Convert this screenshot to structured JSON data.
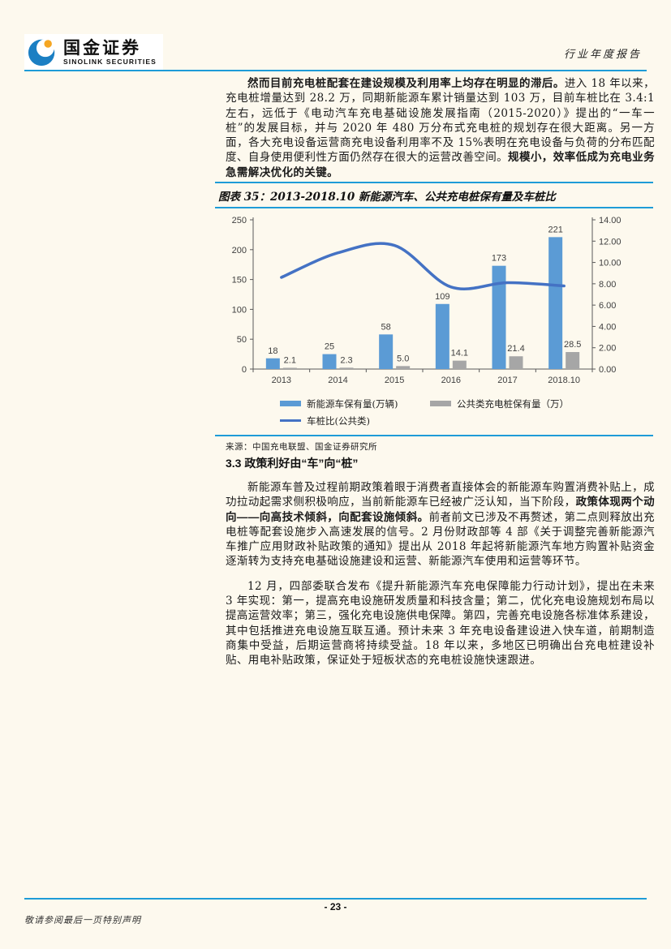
{
  "page": {
    "number": "- 23 -",
    "footer_note": "敬请参阅最后一页特别声明",
    "background": "#FDF9EE",
    "rule_color": "#1E9CD7",
    "text_color": "#1a1a1a"
  },
  "header": {
    "brand_cn": "国金证券",
    "brand_en": "SINOLINK SECURITIES",
    "report_type": "行业年度报告",
    "logo_blue": "#1B7FC3",
    "logo_yellow": "#F5A623"
  },
  "paragraphs_top": [
    {
      "runs": [
        {
          "bold": true,
          "text": "然而目前充电桩配套在建设规模及利用率上均存在明显的滞后。"
        },
        {
          "bold": false,
          "text": "进入 18 年以来，充电桩增量达到 28.2 万，同期新能源车累计销量达到 103 万，目前车桩比在 3.4:1 左右，远低于《电动汽车充电基础设施发展指南（2015-2020）》提出的“一车一桩”的发展目标，并与 2020 年 480 万分布式充电桩的规划存在很大距离。另一方面，各大充电设备运营商充电设备利用率不及 15%表明在充电设备与负荷的分布匹配度、自身使用便利性方面仍然存在很大的运营改善空间。"
        },
        {
          "bold": true,
          "text": "规模小，效率低成为充电业务急需解决优化的关键。"
        }
      ]
    }
  ],
  "figure": {
    "title": "图表 35：2013-2018.10 新能源汽车、公共充电桩保有量及车桩比",
    "source": "来源：中国充电联盟、国金证券研究所"
  },
  "chart_data": {
    "type": "bar",
    "subtype": "bar+line combo, dual axis",
    "title": "图表 35：2013-2018.10 新能源汽车、公共充电桩保有量及车桩比",
    "categories": [
      "2013",
      "2014",
      "2015",
      "2016",
      "2017",
      "2018.10"
    ],
    "series": [
      {
        "name": "新能源车保有量(万辆)",
        "type": "bar",
        "axis": "left",
        "color": "#5B9BD5",
        "values": [
          18,
          25,
          58,
          109,
          173,
          221
        ],
        "label_decimals": 0
      },
      {
        "name": "公共类充电桩保有量（万）",
        "type": "bar",
        "axis": "left",
        "color": "#A6A6A6",
        "values": [
          2.1,
          2.3,
          5.0,
          14.1,
          21.4,
          28.5
        ],
        "label_decimals": 1
      },
      {
        "name": "车桩比(公共类)",
        "type": "line",
        "axis": "right",
        "color": "#4472C4",
        "values": [
          8.6,
          10.9,
          11.6,
          7.7,
          8.1,
          7.8
        ],
        "label_decimals": null
      }
    ],
    "left_axis": {
      "min": 0,
      "max": 250,
      "step": 50
    },
    "right_axis": {
      "min": 0,
      "max": 14,
      "step": 2,
      "decimals": 2
    },
    "legend_position": "bottom",
    "grid": false,
    "axis_color": "#595959",
    "tick_label_color": "#404040"
  },
  "section": {
    "heading": "3.3 政策利好由“车”向“桩”"
  },
  "paragraphs_bottom": [
    {
      "runs": [
        {
          "bold": false,
          "text": "新能源车普及过程前期政策着眼于消费者直接体会的新能源车购置消费补贴上，成功拉动起需求侧积极响应，当前新能源车已经被广泛认知，当下阶段，"
        },
        {
          "bold": true,
          "text": "政策体现两个动向——向高技术倾斜，向配套设施倾斜。"
        },
        {
          "bold": false,
          "text": "前者前文已涉及不再赘述，第二点则释放出充电桩等配套设施步入高速发展的信号。2 月份财政部等 4 部《关于调整完善新能源汽车推广应用财政补贴政策的通知》提出从 2018 年起将新能源汽车地方购置补贴资金逐渐转为支持充电基础设施建设和运营、新能源汽车使用和运营等环节。"
        }
      ]
    },
    {
      "runs": [
        {
          "bold": false,
          "text": "12 月，四部委联合发布《提升新能源汽车充电保障能力行动计划》，提出在未来 3 年实现：第一，提高充电设施研发质量和科技含量；第二，优化充电设施规划布局以提高运营效率；第三，强化充电设施供电保障。第四，完善充电设施各标准体系建设，其中包括推进充电设施互联互通。预计未来 3 年充电设备建设进入快车道，前期制造商集中受益，后期运营商将持续受益。18 年以来，多地区已明确出台充电桩建设补贴、用电补贴政策，保证处于短板状态的充电桩设施快速跟进。"
        }
      ]
    }
  ]
}
